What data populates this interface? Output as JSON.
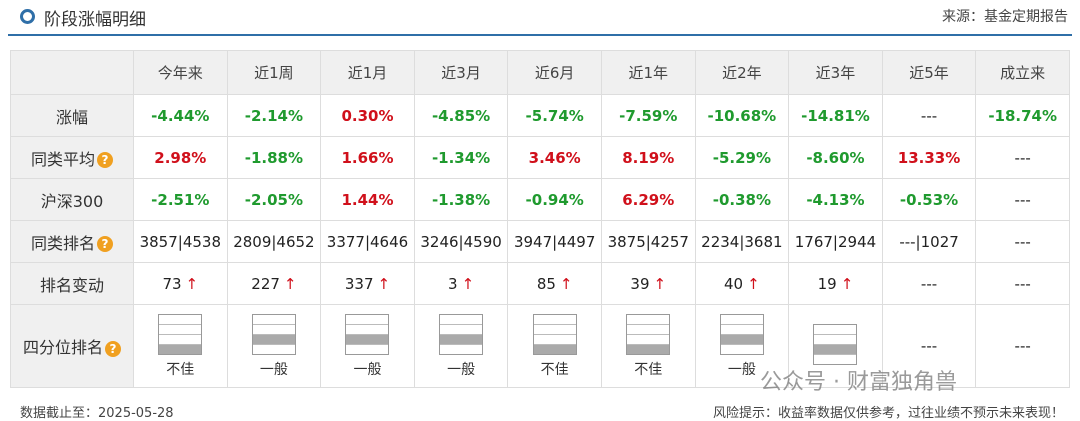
{
  "header": {
    "title": "阶段涨幅明细",
    "source": "来源：基金定期报告"
  },
  "table": {
    "columns": [
      "今年来",
      "近1周",
      "近1月",
      "近3月",
      "近6月",
      "近1年",
      "近2年",
      "近3年",
      "近5年",
      "成立来"
    ],
    "rows": [
      {
        "label": "涨幅",
        "cells": [
          "-4.44%",
          "-2.14%",
          "0.30%",
          "-4.85%",
          "-5.74%",
          "-7.59%",
          "-10.68%",
          "-14.81%",
          "---",
          "-18.74%"
        ]
      },
      {
        "label": "同类平均",
        "cells": [
          "2.98%",
          "-1.88%",
          "1.66%",
          "-1.34%",
          "3.46%",
          "8.19%",
          "-5.29%",
          "-8.60%",
          "13.33%",
          "---"
        ]
      },
      {
        "label": "沪深300",
        "cells": [
          "-2.51%",
          "-2.05%",
          "1.44%",
          "-1.38%",
          "-0.94%",
          "6.29%",
          "-0.38%",
          "-4.13%",
          "-0.53%",
          "---"
        ]
      },
      {
        "label": "同类排名",
        "cells": [
          "3857|4538",
          "2809|4652",
          "3377|4646",
          "3246|4590",
          "3947|4497",
          "3875|4257",
          "2234|3681",
          "1767|2944",
          "---|1027",
          "---"
        ]
      },
      {
        "label": "排名变动",
        "cells": [
          "73",
          "227",
          "337",
          "3",
          "85",
          "39",
          "40",
          "19",
          "---",
          "---"
        ]
      },
      {
        "label": "四分位排名",
        "cells": [
          "不佳",
          "一般",
          "一般",
          "一般",
          "不佳",
          "不佳",
          "一般",
          null,
          "---",
          "---"
        ]
      }
    ]
  },
  "footer": {
    "date": "数据截止至：2025-05-28",
    "risk": "风险提示：收益率数据仅供参考，过往业绩不预示未来表现！"
  },
  "watermark": "公众号 · 财富独角兽"
}
